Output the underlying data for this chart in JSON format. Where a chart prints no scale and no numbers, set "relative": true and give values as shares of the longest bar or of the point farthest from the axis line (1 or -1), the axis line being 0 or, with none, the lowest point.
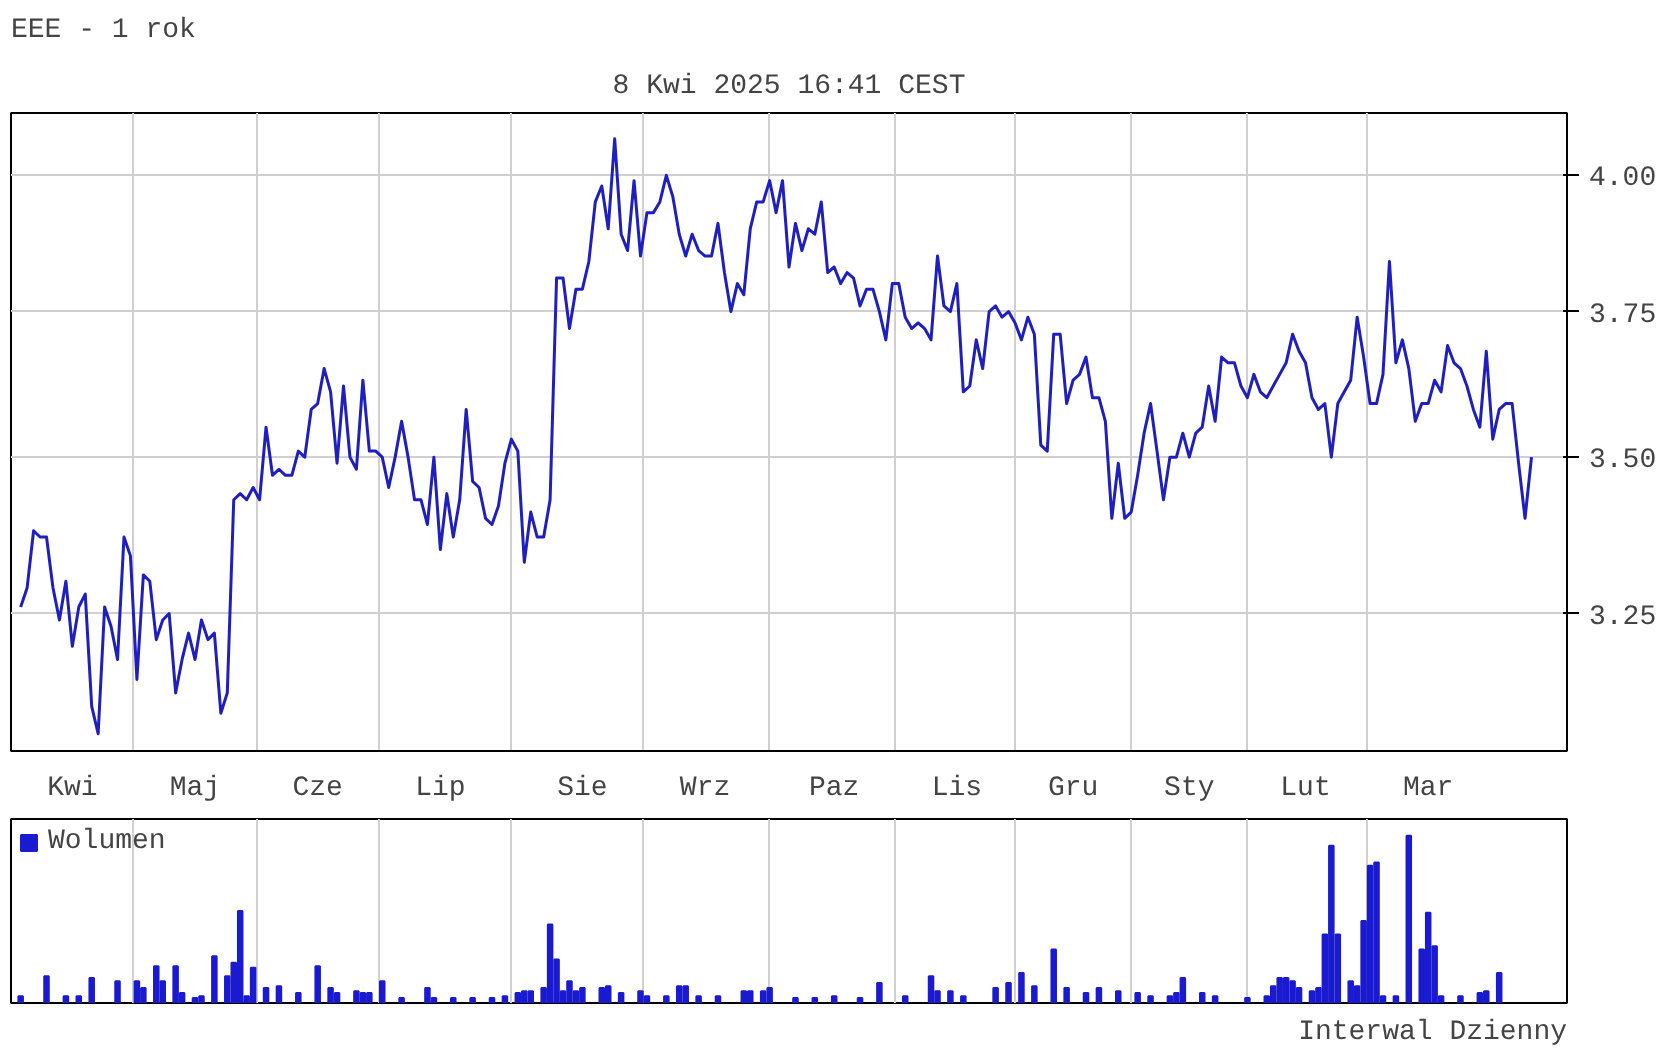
{
  "chart_data": [
    {
      "type": "line",
      "title": "EEE - 1 rok",
      "subtitle": "8 Kwi 2025 16:41 CEST",
      "log": true,
      "grid": true,
      "ylim": [
        3.045,
        4.12
      ],
      "yticks": [
        3.25,
        {
          "value": 3.5,
          "label": "3.50"
        },
        3.75,
        {
          "value": 4,
          "label": "4.00"
        }
      ],
      "categories": [
        null,
        null,
        null,
        null,
        null,
        null,
        null,
        null,
        "Kwi",
        null,
        null,
        null,
        null,
        null,
        null,
        null,
        null,
        null,
        null,
        null,
        null,
        null,
        null,
        null,
        null,
        null,
        null,
        "Maj",
        null,
        null,
        null,
        null,
        null,
        null,
        null,
        null,
        null,
        null,
        null,
        null,
        null,
        null,
        null,
        null,
        null,
        null,
        "Cze",
        null,
        null,
        null,
        null,
        null,
        null,
        null,
        null,
        null,
        null,
        null,
        null,
        null,
        null,
        null,
        null,
        null,
        null,
        "Lip",
        null,
        null,
        null,
        null,
        null,
        null,
        null,
        null,
        null,
        null,
        null,
        null,
        null,
        null,
        null,
        null,
        null,
        null,
        null,
        null,
        null,
        "Sie",
        null,
        null,
        null,
        null,
        null,
        null,
        null,
        null,
        null,
        null,
        null,
        null,
        null,
        null,
        null,
        null,
        null,
        null,
        "Wrz",
        null,
        null,
        null,
        null,
        null,
        null,
        null,
        null,
        null,
        null,
        null,
        null,
        null,
        null,
        null,
        null,
        null,
        null,
        null,
        "Paz",
        null,
        null,
        null,
        null,
        null,
        null,
        null,
        null,
        null,
        null,
        null,
        null,
        null,
        null,
        null,
        null,
        null,
        null,
        "Lis",
        null,
        null,
        null,
        null,
        null,
        null,
        null,
        null,
        null,
        null,
        null,
        null,
        null,
        null,
        null,
        null,
        null,
        "Gru",
        null,
        null,
        null,
        null,
        null,
        null,
        null,
        null,
        null,
        null,
        null,
        null,
        null,
        null,
        null,
        null,
        null,
        "Sty",
        null,
        null,
        null,
        null,
        null,
        null,
        null,
        null,
        null,
        null,
        null,
        null,
        null,
        null,
        null,
        null,
        null,
        "Lut",
        null,
        null,
        null,
        null,
        null,
        null,
        null,
        null,
        null,
        null,
        null,
        null,
        null,
        null,
        null,
        null,
        null,
        null,
        "Mar",
        null,
        null,
        null,
        null,
        null,
        null,
        null,
        null,
        null,
        null,
        null,
        null,
        null,
        null,
        null,
        null
      ],
      "series": [
        {
          "color": "#1f1fbf",
          "values": [
            3.26,
            3.29,
            3.38,
            3.37,
            3.37,
            3.29,
            3.24,
            3.3,
            3.2,
            3.26,
            3.28,
            3.11,
            3.07,
            3.26,
            3.23,
            3.18,
            3.37,
            3.34,
            3.15,
            3.31,
            3.3,
            3.21,
            3.24,
            3.25,
            3.13,
            3.18,
            3.22,
            3.18,
            3.24,
            3.21,
            3.22,
            3.1,
            3.13,
            3.43,
            3.44,
            3.43,
            3.45,
            3.43,
            3.55,
            3.47,
            3.48,
            3.47,
            3.47,
            3.51,
            3.5,
            3.58,
            3.59,
            3.65,
            3.61,
            3.49,
            3.62,
            3.5,
            3.48,
            3.63,
            3.51,
            3.51,
            3.5,
            3.45,
            3.5,
            3.56,
            3.5,
            3.43,
            3.43,
            3.39,
            3.5,
            3.35,
            3.44,
            3.37,
            3.43,
            3.58,
            3.46,
            3.45,
            3.4,
            3.39,
            3.42,
            3.49,
            3.53,
            3.51,
            3.33,
            3.41,
            3.37,
            3.37,
            3.43,
            3.81,
            3.81,
            3.72,
            3.79,
            3.79,
            3.84,
            3.95,
            3.98,
            3.9,
            4.07,
            3.89,
            3.86,
            3.99,
            3.85,
            3.93,
            3.93,
            3.95,
            4.0,
            3.96,
            3.89,
            3.85,
            3.89,
            3.86,
            3.85,
            3.85,
            3.91,
            3.82,
            3.75,
            3.8,
            3.78,
            3.9,
            3.95,
            3.95,
            3.99,
            3.93,
            3.99,
            3.83,
            3.91,
            3.86,
            3.9,
            3.89,
            3.95,
            3.82,
            3.83,
            3.8,
            3.82,
            3.81,
            3.76,
            3.79,
            3.79,
            3.75,
            3.7,
            3.8,
            3.8,
            3.74,
            3.72,
            3.73,
            3.72,
            3.7,
            3.85,
            3.76,
            3.75,
            3.8,
            3.61,
            3.62,
            3.7,
            3.65,
            3.75,
            3.76,
            3.74,
            3.75,
            3.73,
            3.7,
            3.74,
            3.71,
            3.52,
            3.51,
            3.71,
            3.71,
            3.59,
            3.63,
            3.64,
            3.67,
            3.6,
            3.6,
            3.56,
            3.4,
            3.49,
            3.4,
            3.41,
            3.47,
            3.54,
            3.59,
            3.51,
            3.43,
            3.5,
            3.5,
            3.54,
            3.5,
            3.54,
            3.55,
            3.62,
            3.56,
            3.67,
            3.66,
            3.66,
            3.62,
            3.6,
            3.64,
            3.61,
            3.6,
            3.62,
            3.64,
            3.66,
            3.71,
            3.68,
            3.66,
            3.6,
            3.58,
            3.59,
            3.5,
            3.59,
            3.61,
            3.63,
            3.74,
            3.67,
            3.59,
            3.59,
            3.64,
            3.84,
            3.66,
            3.7,
            3.65,
            3.56,
            3.59,
            3.59,
            3.63,
            3.61,
            3.69,
            3.66,
            3.65,
            3.62,
            3.58,
            3.55,
            3.68,
            3.53,
            3.58,
            3.59,
            3.59,
            3.49,
            3.4,
            3.5
          ]
        }
      ]
    },
    {
      "type": "bar",
      "relative": true,
      "grid": "x",
      "legend": "top left",
      "annotations": [
        "Interwal Dzienny"
      ],
      "categories": [
        null,
        null,
        null,
        null,
        null,
        null,
        null,
        null,
        null,
        null,
        null,
        null,
        null,
        null,
        null,
        null,
        null,
        null,
        null,
        null,
        null,
        null,
        null,
        null,
        null,
        null,
        null,
        null,
        null,
        null,
        null,
        null,
        null,
        null,
        null,
        null,
        null,
        null,
        null,
        null,
        null,
        null,
        null,
        null,
        null,
        null,
        null,
        null,
        null,
        null,
        null,
        null,
        null,
        null,
        null,
        null,
        null,
        null,
        null,
        null,
        null,
        null,
        null,
        null,
        null,
        null,
        null,
        null,
        null,
        null,
        null,
        null,
        null,
        null,
        null,
        null,
        null,
        null,
        null,
        null,
        null,
        null,
        null,
        null,
        null,
        null,
        null,
        null,
        null,
        null,
        null,
        null,
        null,
        null,
        null,
        null,
        null,
        null,
        null,
        null,
        null,
        null,
        null,
        null,
        null,
        null,
        null,
        null,
        null,
        null,
        null,
        null,
        null,
        null,
        null,
        null,
        null,
        null,
        null,
        null,
        null,
        null,
        null,
        null,
        null,
        null,
        null,
        null,
        null,
        null,
        null,
        null,
        null,
        null,
        null,
        null,
        null,
        null,
        null,
        null,
        null,
        null,
        null,
        null,
        null,
        null,
        null,
        null,
        null,
        null,
        null,
        null,
        null,
        null,
        null,
        null,
        null,
        null,
        null,
        null,
        null,
        null,
        null,
        null,
        null,
        null,
        null,
        null,
        null,
        null,
        null,
        null,
        null,
        null,
        null,
        null,
        null,
        null,
        null,
        null,
        null,
        null,
        null,
        null,
        null,
        null,
        null,
        null,
        null,
        null,
        null,
        null,
        null,
        null,
        null,
        null,
        null,
        null,
        null,
        null,
        null,
        null,
        null,
        null,
        null,
        null,
        null,
        null,
        null,
        null,
        null,
        null,
        null,
        null,
        null,
        null,
        null,
        null,
        null,
        null,
        null,
        null,
        null,
        null,
        null,
        null,
        null,
        null,
        null,
        null,
        null,
        null,
        null,
        null,
        null
      ],
      "series": [
        {
          "name": "Wolumen",
          "color": "#1a1ad0",
          "values": [
            0.04,
            null,
            null,
            null,
            0.16,
            null,
            null,
            0.04,
            null,
            0.04,
            null,
            0.15,
            null,
            null,
            null,
            0.13,
            null,
            null,
            0.13,
            0.09,
            null,
            0.22,
            0.13,
            null,
            0.22,
            0.06,
            null,
            0.03,
            0.04,
            null,
            0.28,
            null,
            0.16,
            0.24,
            0.55,
            0.04,
            0.21,
            null,
            0.09,
            null,
            0.1,
            null,
            null,
            0.06,
            null,
            null,
            0.22,
            null,
            0.09,
            0.06,
            null,
            null,
            0.07,
            0.06,
            0.06,
            null,
            0.13,
            null,
            null,
            0.03,
            null,
            null,
            null,
            0.09,
            0.03,
            null,
            null,
            0.03,
            null,
            null,
            0.03,
            null,
            null,
            0.03,
            null,
            0.04,
            null,
            0.06,
            0.07,
            0.07,
            null,
            0.09,
            0.47,
            0.26,
            0.07,
            0.13,
            0.07,
            0.09,
            null,
            null,
            0.09,
            0.1,
            null,
            0.06,
            null,
            null,
            0.07,
            0.04,
            null,
            null,
            0.04,
            null,
            0.1,
            0.1,
            null,
            0.04,
            null,
            null,
            0.04,
            null,
            null,
            null,
            0.07,
            0.07,
            null,
            0.07,
            0.09,
            null,
            null,
            null,
            0.03,
            null,
            null,
            0.03,
            null,
            null,
            0.04,
            null,
            null,
            null,
            0.03,
            null,
            null,
            0.12,
            null,
            null,
            null,
            0.04,
            null,
            null,
            null,
            0.16,
            0.07,
            null,
            0.07,
            null,
            0.04,
            null,
            null,
            null,
            null,
            0.09,
            null,
            0.12,
            null,
            0.18,
            null,
            0.1,
            null,
            null,
            0.32,
            null,
            0.09,
            null,
            null,
            0.06,
            null,
            0.09,
            null,
            null,
            0.07,
            null,
            null,
            0.06,
            null,
            0.04,
            null,
            null,
            0.04,
            0.06,
            0.15,
            null,
            null,
            0.06,
            null,
            0.04,
            null,
            null,
            null,
            null,
            0.03,
            null,
            null,
            0.04,
            0.1,
            0.15,
            0.15,
            0.13,
            0.09,
            null,
            0.07,
            0.09,
            0.41,
            0.94,
            0.41,
            null,
            0.13,
            0.1,
            0.49,
            0.82,
            0.84,
            0.04,
            null,
            0.04,
            null,
            1,
            null,
            0.32,
            0.54,
            0.34,
            0.04,
            null,
            null,
            0.04,
            null,
            null,
            0.06,
            0.07,
            null,
            0.18,
            null,
            null,
            null,
            null,
            null
          ]
        }
      ]
    }
  ]
}
